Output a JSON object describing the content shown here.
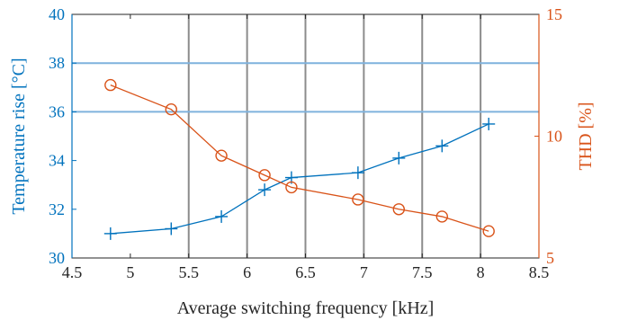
{
  "chart_data": {
    "type": "line",
    "title": "",
    "xlabel": "Average switching frequency [kHz]",
    "xlim": [
      4.5,
      8.5
    ],
    "x_ticks": [
      4.5,
      5,
      5.5,
      6,
      6.5,
      7,
      7.5,
      8,
      8.5
    ],
    "x_tick_labels": [
      "4.5",
      "5",
      "5.5",
      "6",
      "6.5",
      "7",
      "7.5",
      "8",
      "8.5"
    ],
    "y_left": {
      "label": "Temperature rise [°C]",
      "lim": [
        30,
        40
      ],
      "ticks": [
        30,
        32,
        34,
        36,
        38,
        40
      ],
      "tick_labels": [
        "30",
        "32",
        "34",
        "36",
        "38",
        "40"
      ],
      "color": "#0072bd"
    },
    "y_right": {
      "label": "THD [%]",
      "lim": [
        5,
        15
      ],
      "ticks": [
        5,
        10,
        15
      ],
      "tick_labels": [
        "5",
        "10",
        "15"
      ],
      "color": "#d95319"
    },
    "grid": {
      "vertical_at": [
        5.5,
        6,
        6.5,
        7,
        7.5,
        8
      ],
      "vertical_color": "#8c8c8c",
      "horizontal_at_left": [
        36,
        38
      ],
      "horizontal_color": "#7fb2dd"
    },
    "series": [
      {
        "axis": "left",
        "marker": "plus",
        "color": "#0072bd",
        "x": [
          4.83,
          5.35,
          5.78,
          6.15,
          6.38,
          6.95,
          7.3,
          7.67,
          8.07
        ],
        "y": [
          31.0,
          31.2,
          31.7,
          32.8,
          33.3,
          33.5,
          34.1,
          34.6,
          35.5
        ]
      },
      {
        "axis": "right",
        "marker": "circle",
        "color": "#d95319",
        "x": [
          4.83,
          5.35,
          5.78,
          6.15,
          6.38,
          6.95,
          7.3,
          7.67,
          8.07
        ],
        "y": [
          12.1,
          11.1,
          9.2,
          8.4,
          7.9,
          7.4,
          7.0,
          6.7,
          6.1
        ]
      }
    ]
  }
}
